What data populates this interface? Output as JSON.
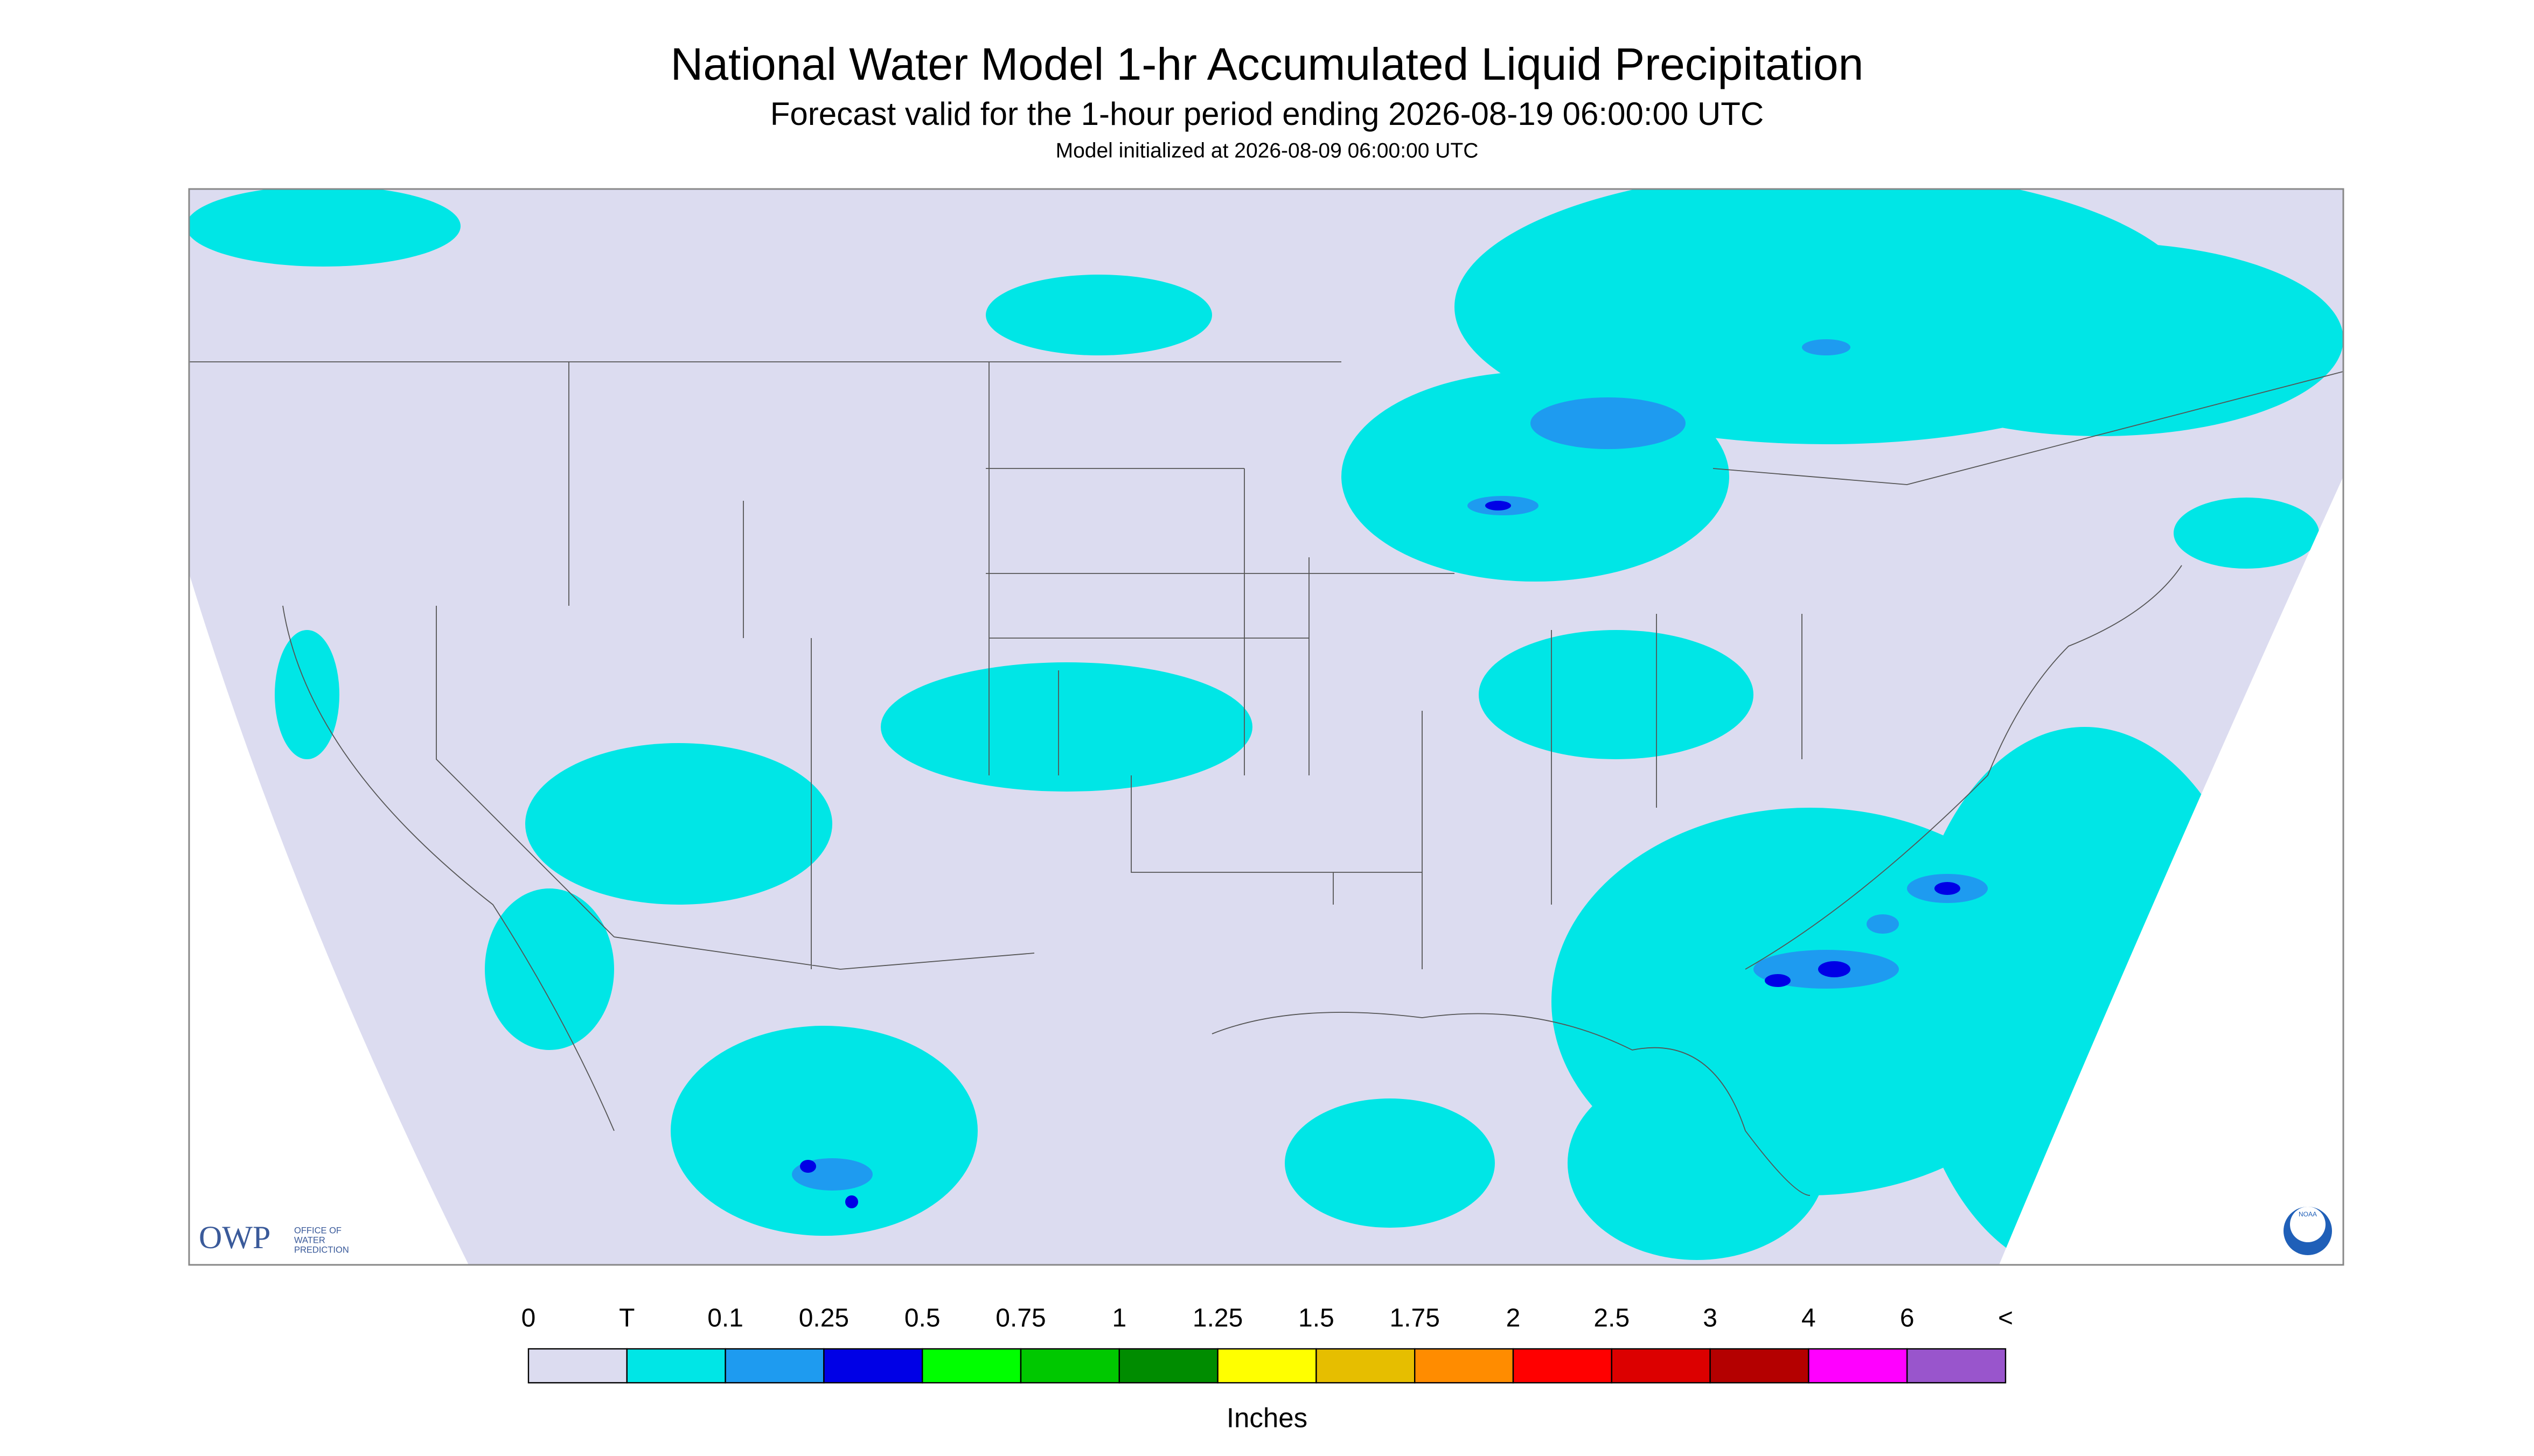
{
  "header": {
    "title": "National Water Model 1-hr Accumulated Liquid Precipitation",
    "subtitle": "Forecast valid for the 1-hour period ending 2026-08-19 06:00:00 UTC",
    "note": "Model initialized at 2026-08-09 06:00:00 UTC"
  },
  "logos": {
    "owp": "OWP",
    "owp_lines": [
      "OFFICE OF",
      "WATER",
      "PREDICTION"
    ],
    "noaa": "NOAA"
  },
  "legend": {
    "labels": [
      "0",
      "T",
      "0.1",
      "0.25",
      "0.5",
      "0.75",
      "1",
      "1.25",
      "1.5",
      "1.75",
      "2",
      "2.5",
      "3",
      "4",
      "6",
      "<"
    ],
    "colors": [
      "#dcdcf0",
      "#00e6e6",
      "#1e9bf0",
      "#0000e6",
      "#00ff00",
      "#00c800",
      "#008c00",
      "#ffff00",
      "#e6be00",
      "#ff8c00",
      "#ff0000",
      "#dc0000",
      "#b40000",
      "#ff00ff",
      "#9955cc"
    ],
    "unit": "Inches"
  }
}
